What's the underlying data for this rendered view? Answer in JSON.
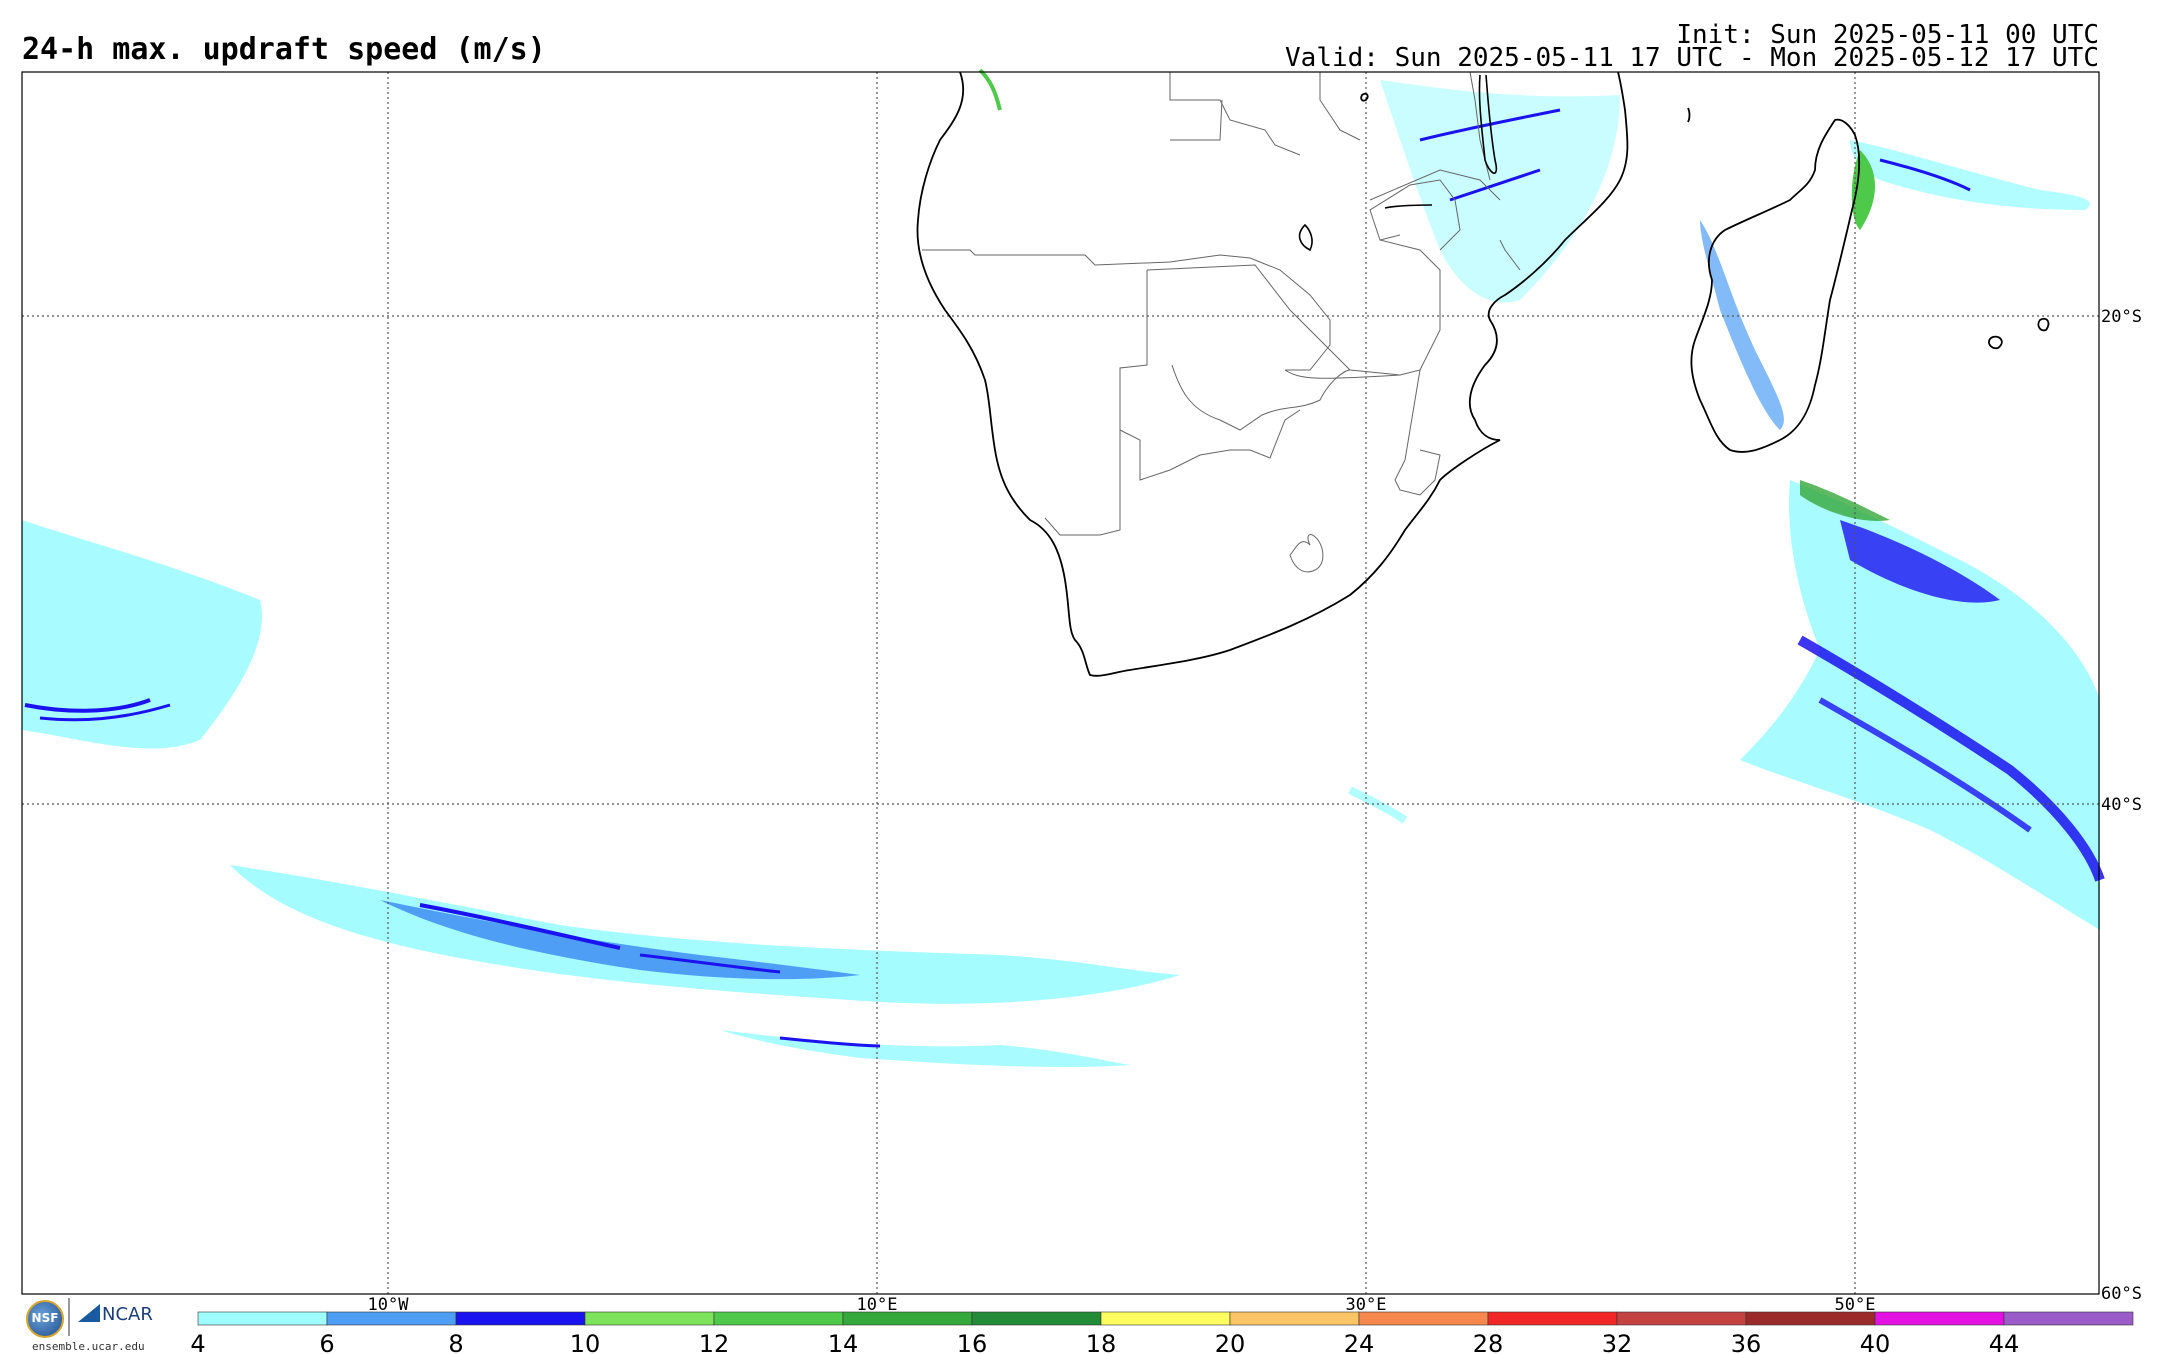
{
  "header": {
    "title": "24-h max. updraft speed (m/s)",
    "init": "Init: Sun 2025-05-11 00 UTC",
    "valid": "Valid: Sun 2025-05-11 17 UTC - Mon 2025-05-12 17 UTC"
  },
  "map": {
    "lon_range": [
      -25,
      60
    ],
    "lat_range": [
      -60,
      -10
    ],
    "longitude_labels": [
      "10°W",
      "10°E",
      "30°E",
      "50°E"
    ],
    "latitude_labels": [
      "20°S",
      "40°S",
      "60°S"
    ],
    "gridlines": "dotted"
  },
  "colorbar": {
    "ticks": [
      "4",
      "6",
      "8",
      "10",
      "12",
      "14",
      "16",
      "18",
      "20",
      "24",
      "28",
      "32",
      "36",
      "40",
      "44"
    ],
    "colors": [
      "#9ffcff",
      "#4f9ef5",
      "#1b12f0",
      "#7de35a",
      "#4ec94a",
      "#34a83b",
      "#228b3a",
      "#fdfd61",
      "#fbc567",
      "#f7884d",
      "#f12626",
      "#c44242",
      "#9b2a2a",
      "#e312e2",
      "#9a5cc9"
    ]
  },
  "logo": {
    "nsf": "NSF",
    "ncar": "NCAR",
    "url": "ensemble.ucar.edu"
  }
}
